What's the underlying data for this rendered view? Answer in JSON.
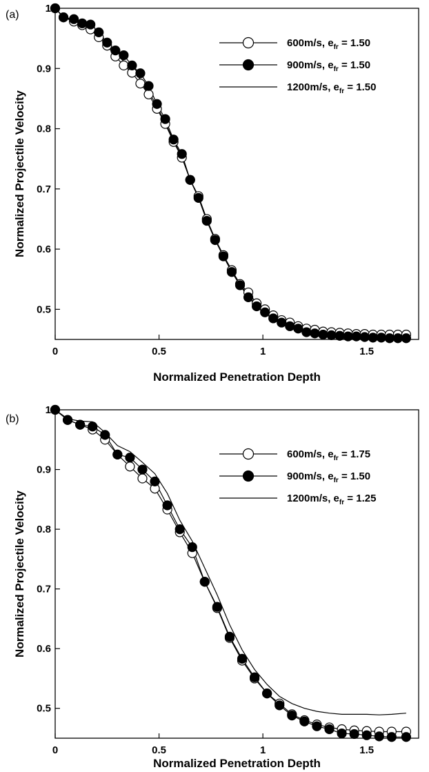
{
  "chart_data": [
    {
      "type": "line",
      "panel_label": "(a)",
      "xlabel": "Normalized Penetration Depth",
      "ylabel": "Normalized Projectile Velocity",
      "xlim": [
        0,
        1.75
      ],
      "ylim": [
        0.45,
        1.0
      ],
      "xticks": [
        "0",
        "0.5",
        "1",
        "1.5"
      ],
      "yticks": [
        "1",
        "0.9",
        "0.8",
        "0.7",
        "0.6",
        "0.5"
      ],
      "grid": false,
      "legend_position": "top-right",
      "series": [
        {
          "name": "600m/s, e",
          "name_sub": "fr",
          "name_suffix": " = 1.50",
          "marker": "open-circle",
          "x": [
            0,
            0.04,
            0.09,
            0.13,
            0.17,
            0.21,
            0.25,
            0.29,
            0.33,
            0.37,
            0.41,
            0.45,
            0.49,
            0.53,
            0.57,
            0.61,
            0.65,
            0.69,
            0.73,
            0.77,
            0.81,
            0.85,
            0.89,
            0.93,
            0.97,
            1.01,
            1.05,
            1.09,
            1.13,
            1.17,
            1.21,
            1.25,
            1.29,
            1.33,
            1.37,
            1.41,
            1.45,
            1.49,
            1.53,
            1.57,
            1.61,
            1.65,
            1.69
          ],
          "y": [
            1.0,
            0.985,
            0.978,
            0.972,
            0.965,
            0.952,
            0.938,
            0.92,
            0.905,
            0.893,
            0.875,
            0.857,
            0.833,
            0.808,
            0.778,
            0.752,
            0.715,
            0.688,
            0.65,
            0.617,
            0.59,
            0.565,
            0.542,
            0.528,
            0.51,
            0.5,
            0.49,
            0.482,
            0.478,
            0.472,
            0.468,
            0.466,
            0.463,
            0.462,
            0.461,
            0.46,
            0.459,
            0.459,
            0.458,
            0.458,
            0.458,
            0.458,
            0.458
          ]
        },
        {
          "name": "900m/s, e",
          "name_sub": "fr",
          "name_suffix": " = 1.50",
          "marker": "filled-circle",
          "x": [
            0,
            0.04,
            0.09,
            0.13,
            0.17,
            0.21,
            0.25,
            0.29,
            0.33,
            0.37,
            0.41,
            0.45,
            0.49,
            0.53,
            0.57,
            0.61,
            0.65,
            0.69,
            0.73,
            0.77,
            0.81,
            0.85,
            0.89,
            0.93,
            0.97,
            1.01,
            1.05,
            1.09,
            1.13,
            1.17,
            1.21,
            1.25,
            1.29,
            1.33,
            1.37,
            1.41,
            1.45,
            1.49,
            1.53,
            1.57,
            1.61,
            1.65,
            1.69
          ],
          "y": [
            1.0,
            0.985,
            0.982,
            0.975,
            0.973,
            0.96,
            0.943,
            0.93,
            0.922,
            0.905,
            0.892,
            0.871,
            0.841,
            0.816,
            0.782,
            0.758,
            0.715,
            0.685,
            0.647,
            0.615,
            0.588,
            0.562,
            0.54,
            0.52,
            0.505,
            0.495,
            0.485,
            0.478,
            0.472,
            0.468,
            0.462,
            0.46,
            0.458,
            0.457,
            0.456,
            0.455,
            0.455,
            0.454,
            0.453,
            0.453,
            0.452,
            0.452,
            0.452
          ]
        },
        {
          "name": "1200m/s, e",
          "name_sub": "fr",
          "name_suffix": " = 1.50",
          "marker": "none",
          "x": [
            0,
            0.04,
            0.09,
            0.13,
            0.17,
            0.21,
            0.25,
            0.29,
            0.33,
            0.37,
            0.41,
            0.45,
            0.49,
            0.53,
            0.57,
            0.61,
            0.65,
            0.69,
            0.73,
            0.77,
            0.81,
            0.85,
            0.89,
            0.93,
            0.97,
            1.01,
            1.05,
            1.09,
            1.13,
            1.17,
            1.21,
            1.25,
            1.29,
            1.33,
            1.37,
            1.41,
            1.45,
            1.49,
            1.53,
            1.57,
            1.61,
            1.65,
            1.69
          ],
          "y": [
            1.0,
            0.986,
            0.98,
            0.974,
            0.968,
            0.956,
            0.94,
            0.925,
            0.912,
            0.898,
            0.882,
            0.862,
            0.837,
            0.81,
            0.78,
            0.754,
            0.715,
            0.686,
            0.648,
            0.616,
            0.588,
            0.563,
            0.541,
            0.523,
            0.507,
            0.497,
            0.487,
            0.48,
            0.475,
            0.47,
            0.465,
            0.463,
            0.461,
            0.46,
            0.459,
            0.458,
            0.457,
            0.457,
            0.456,
            0.455,
            0.455,
            0.455,
            0.455
          ]
        }
      ]
    },
    {
      "type": "line",
      "panel_label": "(b)",
      "xlabel": "Normalized Penetration Depth",
      "ylabel": "Normalized Projectile Velocity",
      "xlim": [
        0,
        1.75
      ],
      "ylim": [
        0.45,
        1.0
      ],
      "xticks": [
        "0",
        "0.5",
        "1",
        "1.5"
      ],
      "yticks": [
        "1",
        "0.9",
        "0.8",
        "0.7",
        "0.6",
        "0.5"
      ],
      "grid": false,
      "legend_position": "top-right",
      "series": [
        {
          "name": "600m/s, e",
          "name_sub": "fr",
          "name_suffix": " = 1.75",
          "marker": "open-circle",
          "x": [
            0,
            0.06,
            0.12,
            0.18,
            0.24,
            0.3,
            0.36,
            0.42,
            0.48,
            0.54,
            0.6,
            0.66,
            0.72,
            0.78,
            0.84,
            0.9,
            0.96,
            1.02,
            1.08,
            1.14,
            1.2,
            1.26,
            1.32,
            1.38,
            1.44,
            1.5,
            1.56,
            1.62,
            1.69
          ],
          "y": [
            1.0,
            0.983,
            0.975,
            0.967,
            0.95,
            0.925,
            0.905,
            0.885,
            0.868,
            0.833,
            0.795,
            0.76,
            0.712,
            0.668,
            0.618,
            0.58,
            0.55,
            0.525,
            0.508,
            0.49,
            0.48,
            0.473,
            0.468,
            0.465,
            0.463,
            0.462,
            0.461,
            0.461,
            0.461
          ]
        },
        {
          "name": "900m/s, e",
          "name_sub": "fr",
          "name_suffix": " = 1.50",
          "marker": "filled-circle",
          "x": [
            0,
            0.06,
            0.12,
            0.18,
            0.24,
            0.3,
            0.36,
            0.42,
            0.48,
            0.54,
            0.6,
            0.66,
            0.72,
            0.78,
            0.84,
            0.9,
            0.96,
            1.02,
            1.08,
            1.14,
            1.2,
            1.26,
            1.32,
            1.38,
            1.44,
            1.5,
            1.56,
            1.62,
            1.69
          ],
          "y": [
            1.0,
            0.983,
            0.975,
            0.972,
            0.958,
            0.925,
            0.92,
            0.9,
            0.88,
            0.84,
            0.8,
            0.77,
            0.712,
            0.67,
            0.62,
            0.583,
            0.552,
            0.525,
            0.505,
            0.488,
            0.478,
            0.47,
            0.465,
            0.458,
            0.457,
            0.455,
            0.453,
            0.452,
            0.452
          ]
        },
        {
          "name": "1200m/s, e",
          "name_sub": "fr",
          "name_suffix": " = 1.25",
          "marker": "none",
          "x": [
            0,
            0.06,
            0.12,
            0.18,
            0.24,
            0.3,
            0.36,
            0.42,
            0.48,
            0.54,
            0.6,
            0.66,
            0.72,
            0.78,
            0.84,
            0.9,
            0.96,
            1.02,
            1.08,
            1.14,
            1.2,
            1.26,
            1.32,
            1.38,
            1.44,
            1.5,
            1.56,
            1.62,
            1.69
          ],
          "y": [
            1.0,
            0.985,
            0.981,
            0.98,
            0.962,
            0.94,
            0.93,
            0.912,
            0.893,
            0.86,
            0.815,
            0.78,
            0.735,
            0.69,
            0.64,
            0.598,
            0.565,
            0.54,
            0.52,
            0.508,
            0.5,
            0.495,
            0.492,
            0.49,
            0.49,
            0.49,
            0.489,
            0.49,
            0.492
          ]
        }
      ]
    }
  ]
}
